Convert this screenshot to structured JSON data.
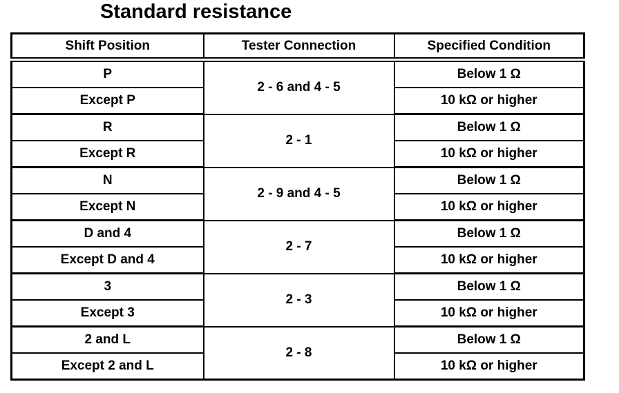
{
  "title": "Standard resistance",
  "table": {
    "headers": {
      "shift_position": "Shift Position",
      "tester_connection": "Tester Connection",
      "specified_condition": "Specified Condition"
    },
    "groups": [
      {
        "connection": "2 - 6 and 4 - 5",
        "rows": [
          {
            "shift_position": "P",
            "specified_condition": "Below 1 Ω"
          },
          {
            "shift_position": "Except P",
            "specified_condition": "10 kΩ or higher"
          }
        ]
      },
      {
        "connection": "2 - 1",
        "rows": [
          {
            "shift_position": "R",
            "specified_condition": "Below 1 Ω"
          },
          {
            "shift_position": "Except R",
            "specified_condition": "10 kΩ or higher"
          }
        ]
      },
      {
        "connection": "2 - 9 and 4 - 5",
        "rows": [
          {
            "shift_position": "N",
            "specified_condition": "Below 1 Ω"
          },
          {
            "shift_position": "Except N",
            "specified_condition": "10 kΩ or higher"
          }
        ]
      },
      {
        "connection": "2 - 7",
        "rows": [
          {
            "shift_position": "D and 4",
            "specified_condition": "Below 1 Ω"
          },
          {
            "shift_position": "Except D and 4",
            "specified_condition": "10 kΩ or higher"
          }
        ]
      },
      {
        "connection": "2 - 3",
        "rows": [
          {
            "shift_position": "3",
            "specified_condition": "Below 1 Ω"
          },
          {
            "shift_position": "Except 3",
            "specified_condition": "10 kΩ or higher"
          }
        ]
      },
      {
        "connection": "2 - 8",
        "rows": [
          {
            "shift_position": "2 and L",
            "specified_condition": "Below 1 Ω"
          },
          {
            "shift_position": "Except 2 and L",
            "specified_condition": "10 kΩ or higher"
          }
        ]
      }
    ]
  },
  "colors": {
    "foreground": "#000000",
    "background": "#ffffff"
  }
}
